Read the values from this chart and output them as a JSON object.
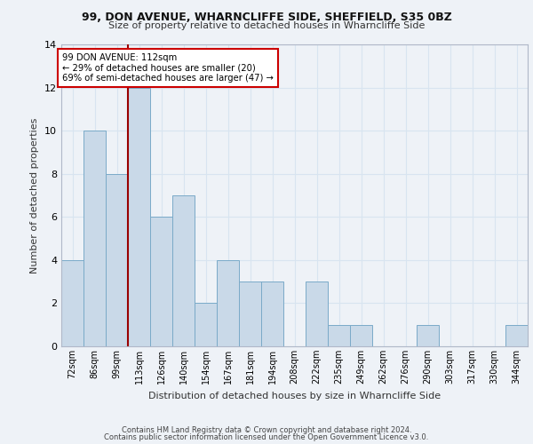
{
  "title1": "99, DON AVENUE, WHARNCLIFFE SIDE, SHEFFIELD, S35 0BZ",
  "title2": "Size of property relative to detached houses in Wharncliffe Side",
  "xlabel": "Distribution of detached houses by size in Wharncliffe Side",
  "ylabel": "Number of detached properties",
  "bin_labels": [
    "72sqm",
    "86sqm",
    "99sqm",
    "113sqm",
    "126sqm",
    "140sqm",
    "154sqm",
    "167sqm",
    "181sqm",
    "194sqm",
    "208sqm",
    "222sqm",
    "235sqm",
    "249sqm",
    "262sqm",
    "276sqm",
    "290sqm",
    "303sqm",
    "317sqm",
    "330sqm",
    "344sqm"
  ],
  "counts": [
    4,
    10,
    8,
    12,
    6,
    7,
    2,
    4,
    3,
    3,
    0,
    3,
    1,
    1,
    0,
    0,
    1,
    0,
    0,
    0,
    1
  ],
  "bar_color": "#c9d9e8",
  "bar_edge_color": "#7aaac8",
  "grid_color": "#d8e4f0",
  "subject_bar_index": 3,
  "subject_line_color": "#990000",
  "annotation_text": "99 DON AVENUE: 112sqm\n← 29% of detached houses are smaller (20)\n69% of semi-detached houses are larger (47) →",
  "annotation_box_color": "#ffffff",
  "annotation_box_edge": "#cc0000",
  "ylim": [
    0,
    14
  ],
  "yticks": [
    0,
    2,
    4,
    6,
    8,
    10,
    12,
    14
  ],
  "footer1": "Contains HM Land Registry data © Crown copyright and database right 2024.",
  "footer2": "Contains public sector information licensed under the Open Government Licence v3.0.",
  "bg_color": "#eef2f7",
  "title_fontsize": 9,
  "subtitle_fontsize": 8,
  "ylabel_fontsize": 8,
  "xlabel_fontsize": 8
}
